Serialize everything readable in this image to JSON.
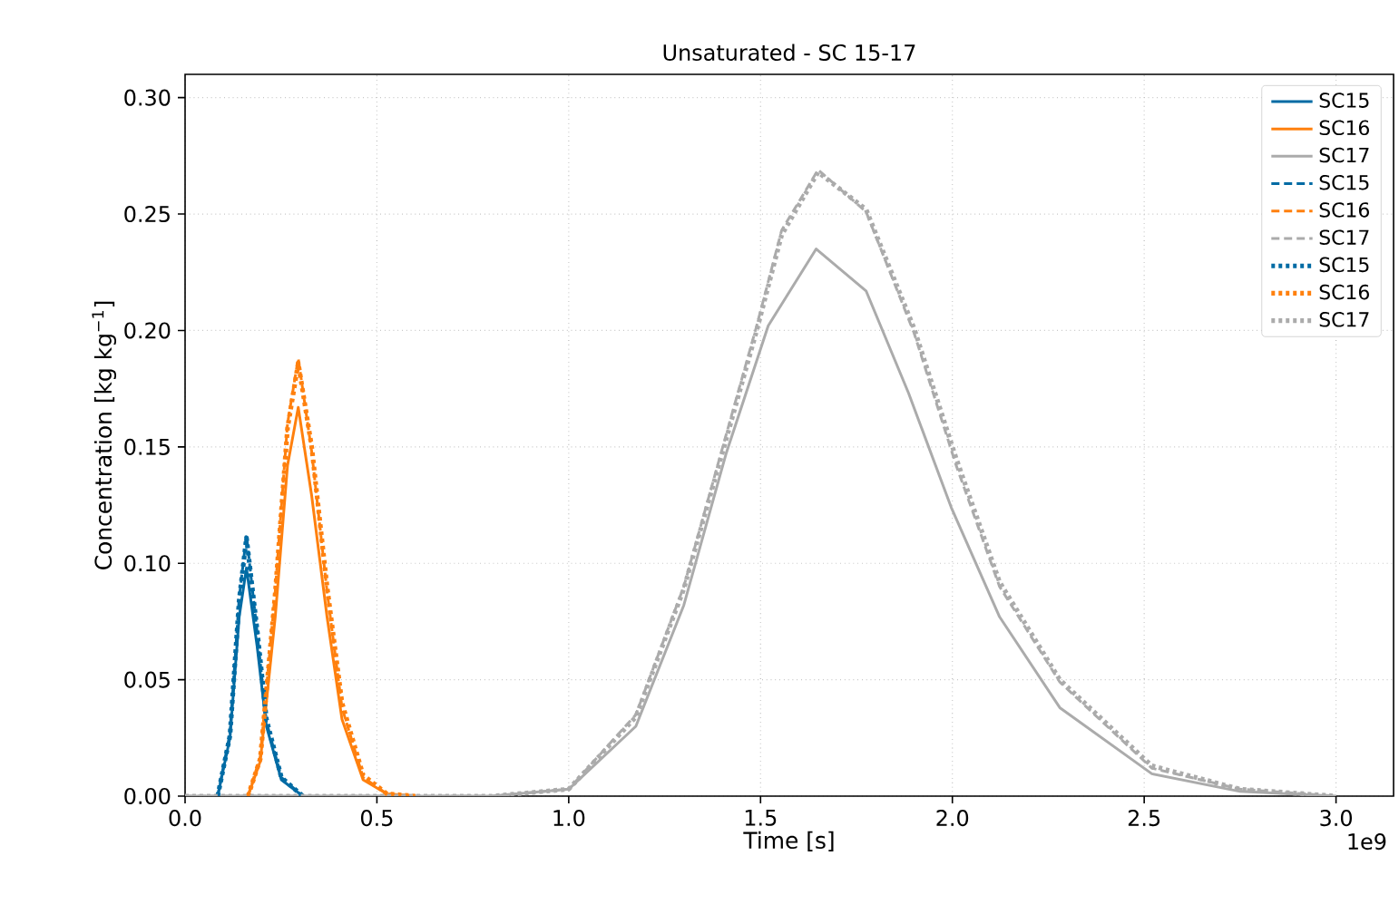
{
  "chart_data": {
    "type": "line",
    "title": "Unsaturated - SC 15-17",
    "xlabel": "Time [s]",
    "ylabel": "Concentration [kg kg$^{−1}$]",
    "annotations": [
      "1e9"
    ],
    "xlim": [
      0,
      3.15
    ],
    "ylim": [
      0,
      0.31
    ],
    "xticks": [
      {
        "value": 0,
        "label": "0.0"
      },
      {
        "value": 0.5,
        "label": "0.5"
      },
      {
        "value": 1,
        "label": "1.0"
      },
      {
        "value": 1.5,
        "label": "1.5"
      },
      {
        "value": 2,
        "label": "2.0"
      },
      {
        "value": 2.5,
        "label": "2.5"
      },
      {
        "value": 3,
        "label": "3.0"
      }
    ],
    "yticks": [
      {
        "value": 0,
        "label": "0.00"
      },
      {
        "value": 0.05,
        "label": "0.05"
      },
      {
        "value": 0.1,
        "label": "0.10"
      },
      {
        "value": 0.15,
        "label": "0.15"
      },
      {
        "value": 0.2,
        "label": "0.20"
      },
      {
        "value": 0.25,
        "label": "0.25"
      },
      {
        "value": 0.3,
        "label": "0.30"
      }
    ],
    "grid": true,
    "legend": "top right",
    "marker": "none",
    "series": [
      {
        "name": "SC15",
        "color": "#006ba4",
        "line_style": "solid",
        "x": [
          0.085,
          0.117,
          0.141,
          0.16,
          0.188,
          0.212,
          0.251,
          0.307
        ],
        "values": [
          0,
          0.025,
          0.077,
          0.098,
          0.064,
          0.03,
          0.007,
          0
        ]
      },
      {
        "name": "SC16",
        "color": "#ff800e",
        "line_style": "solid",
        "x": [
          0.164,
          0.196,
          0.235,
          0.267,
          0.295,
          0.33,
          0.37,
          0.409,
          0.464,
          0.526,
          0.6
        ],
        "values": [
          0,
          0.015,
          0.077,
          0.142,
          0.167,
          0.129,
          0.077,
          0.033,
          0.007,
          0.001,
          0
        ]
      },
      {
        "name": "SC17",
        "color": "#ababab",
        "line_style": "solid",
        "x": [
          0,
          0.8,
          1.0,
          1.175,
          1.3,
          1.41,
          1.52,
          1.645,
          1.775,
          1.886,
          1.997,
          2.123,
          2.28,
          2.52,
          2.75,
          3.0
        ],
        "values": [
          0,
          0,
          0.003,
          0.03,
          0.082,
          0.147,
          0.202,
          0.235,
          0.217,
          0.173,
          0.124,
          0.077,
          0.038,
          0.0096,
          0.002,
          0
        ]
      },
      {
        "name": "SC15",
        "color": "#006ba4",
        "line_style": "dashed",
        "x": [
          0.085,
          0.117,
          0.141,
          0.16,
          0.188,
          0.212,
          0.251,
          0.307
        ],
        "values": [
          0,
          0.027,
          0.085,
          0.112,
          0.07,
          0.032,
          0.008,
          0
        ]
      },
      {
        "name": "SC16",
        "color": "#ff800e",
        "line_style": "dashed",
        "x": [
          0.164,
          0.196,
          0.235,
          0.267,
          0.295,
          0.33,
          0.37,
          0.409,
          0.464,
          0.526,
          0.6
        ],
        "values": [
          0,
          0.017,
          0.088,
          0.16,
          0.188,
          0.148,
          0.088,
          0.038,
          0.008,
          0.001,
          0
        ]
      },
      {
        "name": "SC17",
        "color": "#ababab",
        "line_style": "dashed",
        "x": [
          0,
          0.8,
          1.0,
          1.175,
          1.3,
          1.41,
          1.49,
          1.555,
          1.65,
          1.775,
          1.9,
          2.01,
          2.123,
          2.28,
          2.52,
          2.75,
          3.0
        ],
        "values": [
          0,
          0,
          0.003,
          0.035,
          0.09,
          0.155,
          0.202,
          0.243,
          0.269,
          0.251,
          0.199,
          0.142,
          0.09,
          0.049,
          0.012,
          0.003,
          0
        ]
      },
      {
        "name": "SC15",
        "color": "#006ba4",
        "line_style": "dotted",
        "x": [
          0.085,
          0.117,
          0.141,
          0.16,
          0.188,
          0.212,
          0.251,
          0.307
        ],
        "values": [
          0,
          0.026,
          0.084,
          0.111,
          0.071,
          0.033,
          0.008,
          0
        ]
      },
      {
        "name": "SC16",
        "color": "#ff800e",
        "line_style": "dotted",
        "x": [
          0.164,
          0.196,
          0.235,
          0.267,
          0.295,
          0.33,
          0.37,
          0.409,
          0.464,
          0.526,
          0.6
        ],
        "values": [
          0,
          0.016,
          0.087,
          0.158,
          0.186,
          0.15,
          0.09,
          0.04,
          0.009,
          0.001,
          0
        ]
      },
      {
        "name": "SC17",
        "color": "#ababab",
        "line_style": "dotted",
        "x": [
          0,
          0.8,
          1.0,
          1.175,
          1.3,
          1.41,
          1.49,
          1.555,
          1.65,
          1.775,
          1.9,
          2.01,
          2.123,
          2.28,
          2.52,
          2.75,
          3.0
        ],
        "values": [
          0,
          0,
          0.003,
          0.034,
          0.089,
          0.153,
          0.2,
          0.241,
          0.268,
          0.252,
          0.201,
          0.145,
          0.092,
          0.05,
          0.013,
          0.003,
          0
        ]
      }
    ]
  }
}
